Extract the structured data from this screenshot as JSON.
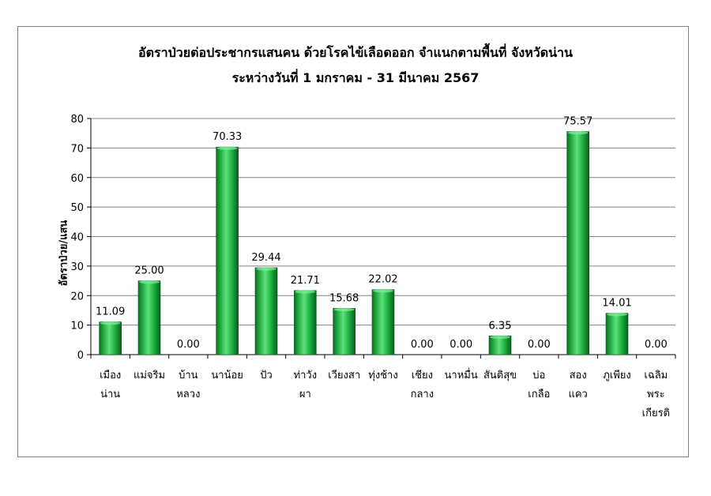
{
  "chart_data": {
    "type": "bar",
    "title": "อัตราป่วยต่อประชากรแสนคน ด้วยโรคไข้เลือดออก จำแนกตามพื้นที่  จังหวัดน่าน",
    "subtitle": "ระหว่างวันที่ 1 มกราคม - 31 มีนาคม 2567",
    "ylabel": "อัตราป่วย/แสน",
    "xlabel": "",
    "ylim": [
      0,
      80
    ],
    "yticks": [
      "0",
      "10",
      "20",
      "30",
      "40",
      "50",
      "60",
      "70",
      "80"
    ],
    "grid": true,
    "categories": [
      [
        "เมือง",
        "น่าน"
      ],
      [
        "แม่จริม"
      ],
      [
        "บ้าน",
        "หลวง"
      ],
      [
        "นาน้อย"
      ],
      [
        "ปัว"
      ],
      [
        "ท่าวัง",
        "ผา"
      ],
      [
        "เวียงสา"
      ],
      [
        "ทุ่งช้าง"
      ],
      [
        "เชียง",
        "กลาง"
      ],
      [
        "นาหมื่น"
      ],
      [
        "สันติสุข"
      ],
      [
        "บ่อ",
        "เกลือ"
      ],
      [
        "สอง",
        "แคว"
      ],
      [
        "ภูเพียง"
      ],
      [
        "เฉลิม",
        "พระ",
        "เกียรติ"
      ]
    ],
    "values": [
      11.09,
      25.0,
      0.0,
      70.33,
      29.44,
      21.71,
      15.68,
      22.02,
      0.0,
      0.0,
      6.35,
      0.0,
      75.57,
      14.01,
      0.0
    ],
    "value_labels": [
      "11.09",
      "25.00",
      "0.00",
      "70.33",
      "29.44",
      "21.71",
      "15.68",
      "22.02",
      "0.00",
      "0.00",
      "6.35",
      "0.00",
      "75.57",
      "14.01",
      "0.00"
    ],
    "bar_color": "#1fa83f",
    "gridline_color": "#808080"
  }
}
